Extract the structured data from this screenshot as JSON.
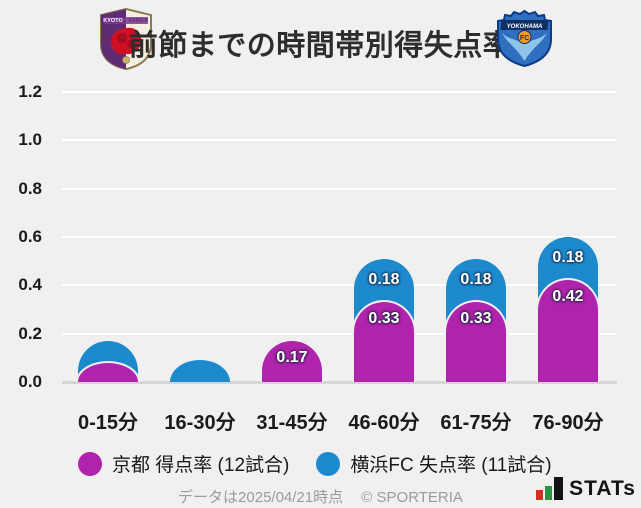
{
  "header": {
    "title": "前節までの時間帯別得失点率",
    "left_crest": {
      "line1": "KYOTO",
      "line2": "SANGA"
    },
    "right_crest": {
      "banner": "YOKOHAMA",
      "circle": "FC"
    }
  },
  "chart_data": {
    "type": "bar",
    "stacked": true,
    "title": "前節までの時間帯別得失点率",
    "categories": [
      "0-15分",
      "16-30分",
      "31-45分",
      "46-60分",
      "61-75分",
      "76-90分"
    ],
    "series": [
      {
        "name": "京都 得点率 (12試合)",
        "color": "#b023ac",
        "values": [
          0.08,
          0,
          0.17,
          0.33,
          0.33,
          0.42
        ],
        "labels": [
          "",
          "",
          "0.17",
          "0.33",
          "0.33",
          "0.42"
        ]
      },
      {
        "name": "横浜FC 失点率 (11試合)",
        "color": "#1d8ace",
        "values": [
          0.09,
          0.09,
          0,
          0.18,
          0.18,
          0.18
        ],
        "labels": [
          "",
          "",
          "",
          "0.18",
          "0.18",
          "0.18"
        ]
      }
    ],
    "xlabel": "",
    "ylabel": "",
    "ylim": [
      0,
      1.2
    ],
    "yticks": [
      "0.0",
      "0.2",
      "0.4",
      "0.6",
      "0.8",
      "1.0",
      "1.2"
    ],
    "grid": true,
    "legend_position": "bottom",
    "bar_style": "rounded-dome-stacked-overlay"
  },
  "legend": {
    "items": [
      {
        "label": "京都 得点率 (12試合)",
        "color": "#b023ac"
      },
      {
        "label": "横浜FC 失点率 (11試合)",
        "color": "#1d8ace"
      }
    ]
  },
  "footer": {
    "note": "データは2025/04/21時点",
    "copyright": "© SPORTERIA",
    "brand": "STATs"
  },
  "colors": {
    "background": "#f0f0f0",
    "gridline": "#ffffff",
    "baseline": "#d4d4d4",
    "bar_label_text": "#ffffff",
    "axis_text": "#1a1a1a",
    "stats_red": "#d92b1f",
    "stats_green": "#27963c",
    "stats_black": "#141414"
  }
}
